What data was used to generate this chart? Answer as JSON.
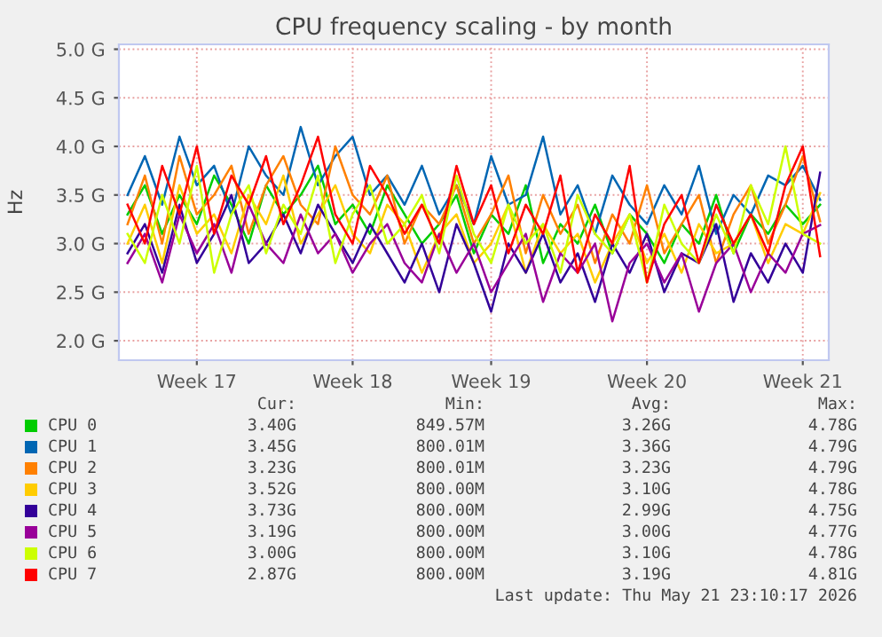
{
  "chart_data": {
    "type": "line",
    "title": "CPU frequency scaling - by month",
    "ylabel": "Hz",
    "categories": [
      null,
      null,
      null,
      null,
      "Week 17",
      null,
      null,
      null,
      null,
      null,
      null,
      null,
      null,
      "Week 18",
      null,
      null,
      null,
      null,
      null,
      null,
      null,
      "Week 19",
      null,
      null,
      null,
      null,
      null,
      null,
      null,
      null,
      "Week 20",
      null,
      null,
      null,
      null,
      null,
      null,
      null,
      null,
      "Week 21",
      null
    ],
    "ylim": [
      1.8,
      5.05
    ],
    "yticks": [
      {
        "value": 2.0,
        "label": "2.0 G"
      },
      {
        "value": 2.5,
        "label": "2.5 G"
      },
      {
        "value": 3.0,
        "label": "3.0 G"
      },
      {
        "value": 3.5,
        "label": "3.5 G"
      },
      {
        "value": 4.0,
        "label": "4.0 G"
      },
      {
        "value": 4.5,
        "label": "4.5 G"
      },
      {
        "value": 5.0,
        "label": "5.0 G"
      }
    ],
    "grid": true,
    "legend": "bottom",
    "series": [
      {
        "name": "CPU 0",
        "color": "#00cc00",
        "values": [
          3.3,
          3.6,
          3.1,
          3.5,
          3.2,
          3.7,
          3.4,
          3.0,
          3.6,
          3.3,
          3.5,
          3.8,
          3.2,
          3.4,
          3.1,
          3.6,
          3.3,
          3.0,
          3.2,
          3.5,
          2.9,
          3.3,
          3.1,
          3.6,
          2.8,
          3.2,
          3.0,
          3.4,
          2.9,
          3.3,
          3.1,
          2.8,
          3.2,
          3.0,
          3.5,
          2.9,
          3.3,
          3.1,
          3.4,
          3.2,
          3.4
        ]
      },
      {
        "name": "CPU 1",
        "color": "#0066b3",
        "values": [
          3.5,
          3.9,
          3.4,
          4.1,
          3.6,
          3.8,
          3.3,
          4.0,
          3.7,
          3.5,
          4.2,
          3.6,
          3.9,
          4.1,
          3.5,
          3.7,
          3.4,
          3.8,
          3.3,
          3.6,
          3.2,
          3.9,
          3.4,
          3.5,
          4.1,
          3.3,
          3.6,
          3.1,
          3.7,
          3.4,
          3.2,
          3.6,
          3.3,
          3.8,
          3.1,
          3.5,
          3.3,
          3.7,
          3.6,
          3.8,
          3.45
        ]
      },
      {
        "name": "CPU 2",
        "color": "#ff8000",
        "values": [
          3.2,
          3.7,
          3.0,
          3.9,
          3.3,
          3.5,
          3.8,
          3.1,
          3.6,
          3.9,
          3.4,
          3.2,
          4.0,
          3.5,
          3.3,
          3.7,
          3.0,
          3.4,
          3.2,
          3.6,
          3.0,
          3.3,
          3.7,
          2.9,
          3.5,
          3.1,
          3.4,
          2.8,
          3.3,
          3.0,
          3.6,
          2.9,
          3.2,
          3.5,
          2.8,
          3.3,
          3.6,
          3.0,
          3.4,
          3.9,
          3.23
        ]
      },
      {
        "name": "CPU 3",
        "color": "#ffcc00",
        "values": [
          3.0,
          3.4,
          2.8,
          3.6,
          3.1,
          3.3,
          2.9,
          3.5,
          3.2,
          3.7,
          3.0,
          3.3,
          3.6,
          3.1,
          2.9,
          3.4,
          3.2,
          2.7,
          3.1,
          3.3,
          2.8,
          3.0,
          3.4,
          2.7,
          3.2,
          2.9,
          3.1,
          2.6,
          3.0,
          3.3,
          2.8,
          3.1,
          2.7,
          3.2,
          2.9,
          3.0,
          3.3,
          2.8,
          3.2,
          3.1,
          3.52
        ]
      },
      {
        "name": "CPU 4",
        "color": "#330099",
        "values": [
          2.9,
          3.2,
          2.7,
          3.4,
          2.8,
          3.1,
          3.5,
          2.8,
          3.0,
          3.3,
          2.9,
          3.4,
          3.1,
          2.8,
          3.2,
          2.9,
          2.6,
          3.0,
          2.5,
          3.2,
          2.8,
          2.3,
          3.0,
          2.7,
          3.1,
          2.6,
          2.9,
          2.4,
          3.0,
          2.7,
          3.1,
          2.5,
          2.9,
          2.8,
          3.2,
          2.4,
          2.9,
          2.6,
          3.0,
          2.7,
          3.73
        ]
      },
      {
        "name": "CPU 5",
        "color": "#990099",
        "values": [
          2.8,
          3.1,
          2.6,
          3.3,
          2.9,
          3.2,
          2.7,
          3.4,
          3.0,
          2.8,
          3.3,
          2.9,
          3.1,
          2.7,
          3.0,
          3.2,
          2.8,
          2.6,
          3.1,
          2.7,
          3.0,
          2.5,
          2.8,
          3.1,
          2.4,
          2.9,
          2.7,
          3.0,
          2.2,
          2.8,
          3.0,
          2.6,
          2.9,
          2.3,
          2.8,
          3.0,
          2.5,
          2.9,
          2.7,
          3.1,
          3.19
        ]
      },
      {
        "name": "CPU 6",
        "color": "#ccff00",
        "values": [
          3.1,
          2.8,
          3.5,
          3.0,
          3.8,
          2.7,
          3.3,
          3.6,
          2.9,
          3.4,
          3.1,
          3.7,
          2.8,
          3.3,
          3.6,
          3.0,
          3.2,
          3.5,
          2.9,
          3.7,
          3.1,
          2.8,
          3.4,
          3.0,
          3.2,
          2.7,
          3.5,
          3.1,
          2.9,
          3.3,
          2.6,
          3.4,
          3.0,
          2.8,
          3.3,
          2.9,
          3.6,
          3.2,
          4.0,
          3.1,
          3.0
        ]
      },
      {
        "name": "CPU 7",
        "color": "#ff0000",
        "values": [
          3.4,
          3.0,
          3.8,
          3.3,
          4.0,
          3.1,
          3.7,
          3.4,
          3.9,
          3.2,
          3.6,
          4.1,
          3.3,
          3.0,
          3.8,
          3.5,
          3.1,
          3.4,
          3.0,
          3.8,
          3.2,
          3.6,
          2.9,
          3.4,
          3.1,
          3.7,
          2.7,
          3.3,
          3.0,
          3.8,
          2.6,
          3.2,
          3.5,
          2.8,
          3.4,
          3.0,
          3.3,
          2.9,
          3.6,
          4.0,
          2.87
        ]
      }
    ],
    "annotations": [
      "Cur:",
      "Min:",
      "Avg:",
      "Max:",
      "3.40G",
      "849.57M",
      "3.26G",
      "4.78G",
      "3.45G",
      "800.01M",
      "3.36G",
      "4.79G",
      "3.23G",
      "800.01M",
      "3.23G",
      "4.79G",
      "3.52G",
      "800.00M",
      "3.10G",
      "4.78G",
      "3.73G",
      "800.00M",
      "2.99G",
      "4.75G",
      "3.19G",
      "800.00M",
      "3.00G",
      "4.77G",
      "3.00G",
      "800.00M",
      "3.10G",
      "4.78G",
      "2.87G",
      "800.00M",
      "3.19G",
      "4.81G",
      "Last update: Thu May 21 23:10:17 2026"
    ]
  }
}
